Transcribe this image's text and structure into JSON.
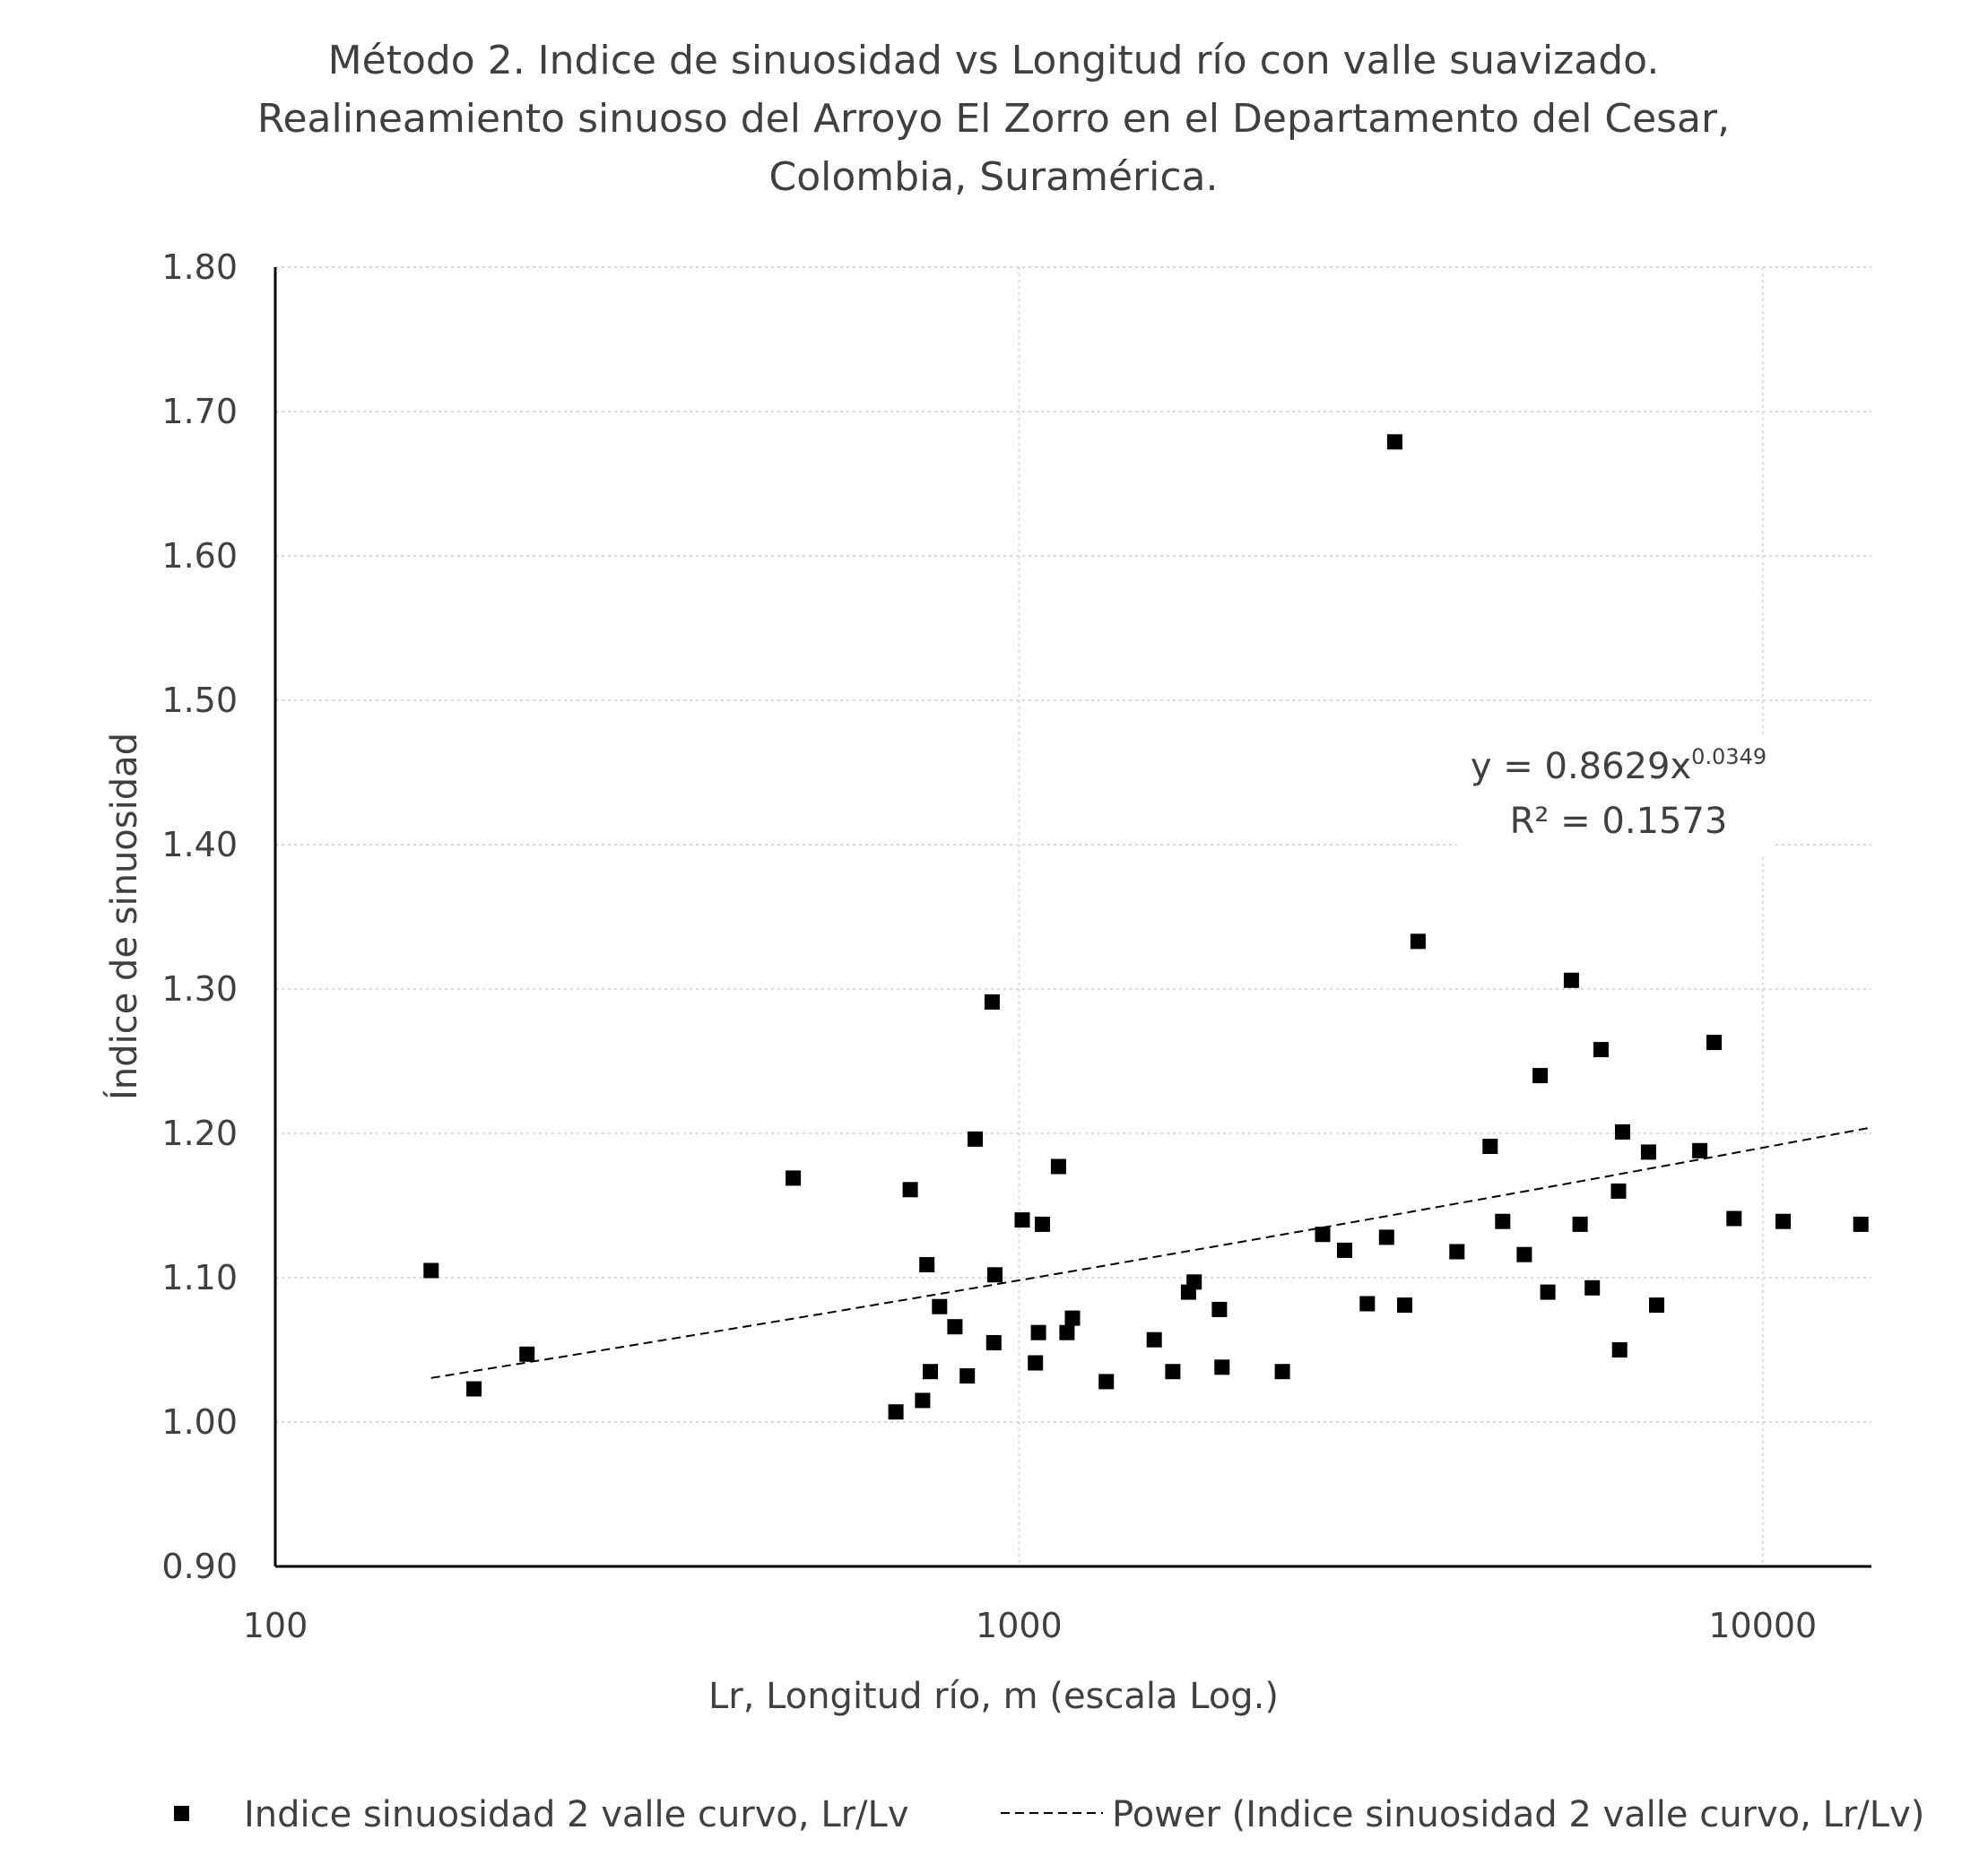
{
  "chart_data": {
    "type": "scatter",
    "title_lines": [
      "Método 2. Indice de sinuosidad vs Longitud río con valle suavizado.",
      "Realineamiento sinuoso del Arroyo El Zorro en el Departamento del Cesar,",
      "Colombia, Suramérica."
    ],
    "xlabel": "Lr, Longitud río, m (escala Log.)",
    "ylabel": "Índice de sinuosidad",
    "x_scale": "log",
    "xlim": [
      100,
      14000
    ],
    "ylim": [
      0.9,
      1.8
    ],
    "x_ticks": [
      {
        "value": 100,
        "label": "100"
      },
      {
        "value": 1000,
        "label": "1000"
      },
      {
        "value": 10000,
        "label": "10000"
      }
    ],
    "y_ticks": [
      {
        "value": 0.9,
        "label": "0.90"
      },
      {
        "value": 1.0,
        "label": "1.00"
      },
      {
        "value": 1.1,
        "label": "1.10"
      },
      {
        "value": 1.2,
        "label": "1.20"
      },
      {
        "value": 1.3,
        "label": "1.30"
      },
      {
        "value": 1.4,
        "label": "1.40"
      },
      {
        "value": 1.5,
        "label": "1.50"
      },
      {
        "value": 1.6,
        "label": "1.60"
      },
      {
        "value": 1.7,
        "label": "1.70"
      },
      {
        "value": 1.8,
        "label": "1.80"
      }
    ],
    "grid": "horizontal dotted",
    "legend_position": "bottom",
    "marker_color": "#000000",
    "series": [
      {
        "name": "Indice sinuosidad 2 valle curvo, Lr/Lv",
        "points": [
          [
            162,
            1.105
          ],
          [
            185,
            1.023
          ],
          [
            218,
            1.047
          ],
          [
            497,
            1.169
          ],
          [
            683,
            1.007
          ],
          [
            714,
            1.161
          ],
          [
            742,
            1.015
          ],
          [
            752,
            1.109
          ],
          [
            760,
            1.035
          ],
          [
            782,
            1.08
          ],
          [
            820,
            1.066
          ],
          [
            852,
            1.032
          ],
          [
            873,
            1.196
          ],
          [
            920,
            1.291
          ],
          [
            928,
            1.102
          ],
          [
            925,
            1.055
          ],
          [
            1010,
            1.14
          ],
          [
            1052,
            1.041
          ],
          [
            1062,
            1.062
          ],
          [
            1075,
            1.137
          ],
          [
            1130,
            1.177
          ],
          [
            1160,
            1.062
          ],
          [
            1180,
            1.072
          ],
          [
            1310,
            1.028
          ],
          [
            1520,
            1.057
          ],
          [
            1610,
            1.035
          ],
          [
            1690,
            1.09
          ],
          [
            1720,
            1.097
          ],
          [
            1860,
            1.078
          ],
          [
            1875,
            1.038
          ],
          [
            2260,
            1.035
          ],
          [
            2560,
            1.13
          ],
          [
            2740,
            1.119
          ],
          [
            2940,
            1.082
          ],
          [
            3120,
            1.128
          ],
          [
            3200,
            1.679
          ],
          [
            3300,
            1.081
          ],
          [
            3440,
            1.333
          ],
          [
            3880,
            1.118
          ],
          [
            4300,
            1.191
          ],
          [
            4470,
            1.139
          ],
          [
            4780,
            1.116
          ],
          [
            5020,
            1.24
          ],
          [
            5140,
            1.09
          ],
          [
            5530,
            1.306
          ],
          [
            5680,
            1.137
          ],
          [
            5900,
            1.093
          ],
          [
            6060,
            1.258
          ],
          [
            6400,
            1.16
          ],
          [
            6420,
            1.05
          ],
          [
            6480,
            1.201
          ],
          [
            7020,
            1.187
          ],
          [
            7200,
            1.081
          ],
          [
            8230,
            1.188
          ],
          [
            8600,
            1.263
          ],
          [
            9150,
            1.141
          ],
          [
            10650,
            1.139
          ],
          [
            13550,
            1.137
          ]
        ]
      }
    ],
    "trendline": {
      "name": "Power (Indice sinuosidad 2 valle curvo, Lr/Lv)",
      "type": "power",
      "a": 0.8629,
      "b": 0.0349,
      "x_range": [
        162,
        14000
      ],
      "equation_text": "y = 0.8629x",
      "equation_exponent": "0.0349",
      "r2_text": "R² = 0.1573"
    }
  }
}
